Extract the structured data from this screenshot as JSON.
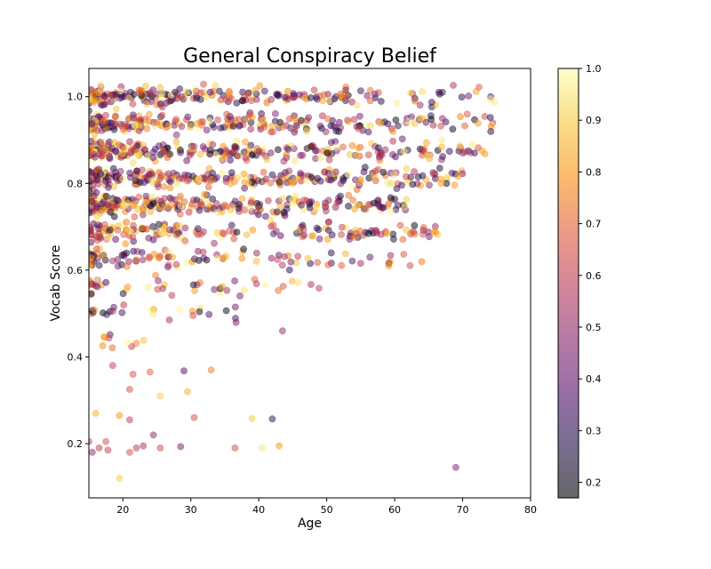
{
  "chart_data": {
    "type": "scatter",
    "title": "General Conspiracy Belief",
    "xlabel": "Age",
    "ylabel": "Vocab Score",
    "xlim": [
      15,
      80
    ],
    "ylim": [
      0.075,
      1.065
    ],
    "xticks": [
      20,
      30,
      40,
      50,
      60,
      70,
      80
    ],
    "yticks": [
      0.2,
      0.4,
      0.6,
      0.8,
      1.0
    ],
    "xtick_labels": [
      "20",
      "30",
      "40",
      "50",
      "60",
      "70",
      "80"
    ],
    "ytick_labels": [
      "0.2",
      "0.4",
      "0.6",
      "0.8",
      "1.0"
    ],
    "grid": false,
    "marker_alpha": 0.5,
    "colormap": "inferno",
    "colorbar": {
      "label": "",
      "range": [
        0.17,
        1.0
      ],
      "ticks": [
        0.2,
        0.3,
        0.4,
        0.5,
        0.6,
        0.7,
        0.8,
        0.9,
        1.0
      ],
      "tick_labels": [
        "0.2",
        "0.3",
        "0.4",
        "0.5",
        "0.6",
        "0.7",
        "0.8",
        "0.9",
        "1.0"
      ]
    },
    "clusters": [
      {
        "y": 1.0,
        "x_from": 15,
        "x_to": 75,
        "count": 230
      },
      {
        "y": 0.938,
        "x_from": 15,
        "x_to": 75.5,
        "count": 250
      },
      {
        "y": 0.875,
        "x_from": 15,
        "x_to": 74,
        "count": 270
      },
      {
        "y": 0.812,
        "x_from": 15,
        "x_to": 70,
        "count": 280
      },
      {
        "y": 0.75,
        "x_from": 15,
        "x_to": 62,
        "count": 270
      },
      {
        "y": 0.688,
        "x_from": 15,
        "x_to": 67,
        "count": 180
      },
      {
        "y": 0.625,
        "x_from": 15,
        "x_to": 64,
        "count": 100
      },
      {
        "y": 0.562,
        "x_from": 15,
        "x_to": 52,
        "count": 45
      },
      {
        "y": 0.5,
        "x_from": 15,
        "x_to": 38,
        "count": 25
      },
      {
        "y": 0.438,
        "x_from": 15,
        "x_to": 27.5,
        "count": 10
      }
    ],
    "points": [
      {
        "x": 16.0,
        "y": 0.27,
        "c": 0.85
      },
      {
        "x": 19.5,
        "y": 0.265,
        "c": 0.8
      },
      {
        "x": 21.0,
        "y": 0.255,
        "c": 0.6
      },
      {
        "x": 30.5,
        "y": 0.26,
        "c": 0.65
      },
      {
        "x": 39.0,
        "y": 0.258,
        "c": 0.9
      },
      {
        "x": 42.0,
        "y": 0.257,
        "c": 0.3
      },
      {
        "x": 18.5,
        "y": 0.38,
        "c": 0.6
      },
      {
        "x": 21.5,
        "y": 0.36,
        "c": 0.65
      },
      {
        "x": 24.0,
        "y": 0.365,
        "c": 0.7
      },
      {
        "x": 29.0,
        "y": 0.368,
        "c": 0.35
      },
      {
        "x": 33.0,
        "y": 0.37,
        "c": 0.75
      },
      {
        "x": 21.0,
        "y": 0.325,
        "c": 0.65
      },
      {
        "x": 25.5,
        "y": 0.31,
        "c": 0.9
      },
      {
        "x": 29.5,
        "y": 0.32,
        "c": 0.85
      },
      {
        "x": 43.5,
        "y": 0.46,
        "c": 0.5
      },
      {
        "x": 15.0,
        "y": 0.205,
        "c": 0.6
      },
      {
        "x": 15.5,
        "y": 0.18,
        "c": 0.5
      },
      {
        "x": 16.5,
        "y": 0.19,
        "c": 0.6
      },
      {
        "x": 17.5,
        "y": 0.205,
        "c": 0.65
      },
      {
        "x": 17.8,
        "y": 0.185,
        "c": 0.6
      },
      {
        "x": 19.5,
        "y": 0.12,
        "c": 0.9
      },
      {
        "x": 21.0,
        "y": 0.18,
        "c": 0.65
      },
      {
        "x": 22.0,
        "y": 0.19,
        "c": 0.6
      },
      {
        "x": 23.0,
        "y": 0.195,
        "c": 0.55
      },
      {
        "x": 24.5,
        "y": 0.22,
        "c": 0.5
      },
      {
        "x": 25.5,
        "y": 0.19,
        "c": 0.65
      },
      {
        "x": 28.5,
        "y": 0.193,
        "c": 0.45
      },
      {
        "x": 36.5,
        "y": 0.19,
        "c": 0.65
      },
      {
        "x": 40.5,
        "y": 0.19,
        "c": 0.95
      },
      {
        "x": 43.0,
        "y": 0.195,
        "c": 0.8
      },
      {
        "x": 69.0,
        "y": 0.145,
        "c": 0.45
      }
    ]
  }
}
